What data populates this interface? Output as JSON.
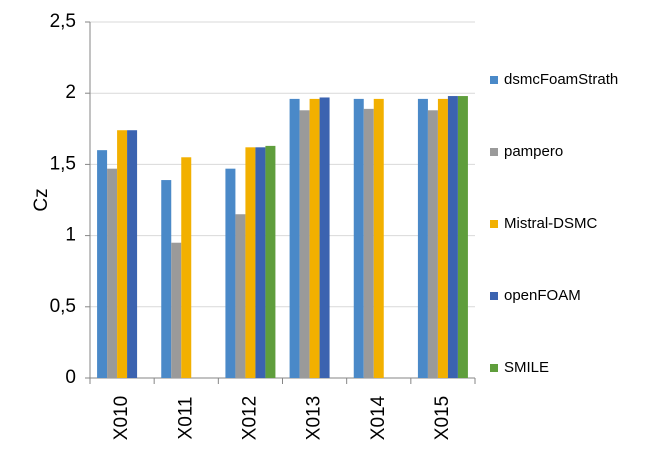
{
  "chart_data": {
    "type": "bar",
    "y_label": "Cz",
    "categories": [
      "X010",
      "X011",
      "X012",
      "X013",
      "X014",
      "X015"
    ],
    "series": [
      {
        "name": "dsmcFoamStrath",
        "color": "#4a89c8",
        "values": [
          1.6,
          1.39,
          1.47,
          1.96,
          1.96,
          1.96
        ]
      },
      {
        "name": "pampero",
        "color": "#9a9a9a",
        "values": [
          1.47,
          0.95,
          1.15,
          1.88,
          1.89,
          1.88
        ]
      },
      {
        "name": "Mistral-DSMC",
        "color": "#f2b000",
        "values": [
          1.74,
          1.55,
          1.62,
          1.96,
          1.96,
          1.96
        ]
      },
      {
        "name": "openFOAM",
        "color": "#3b63b0",
        "values": [
          1.74,
          null,
          1.62,
          1.97,
          null,
          1.98
        ]
      },
      {
        "name": "SMILE",
        "color": "#5f9e3c",
        "values": [
          null,
          null,
          1.63,
          null,
          null,
          1.98
        ]
      }
    ],
    "ylim": [
      0,
      2.5
    ],
    "yticks": [
      0,
      {
        "value": 0.5,
        "label": "0,5"
      },
      1,
      {
        "value": 1.5,
        "label": "1,5"
      },
      2,
      {
        "value": 2.5,
        "label": "2,5"
      }
    ],
    "grid": true,
    "legend": "right"
  }
}
